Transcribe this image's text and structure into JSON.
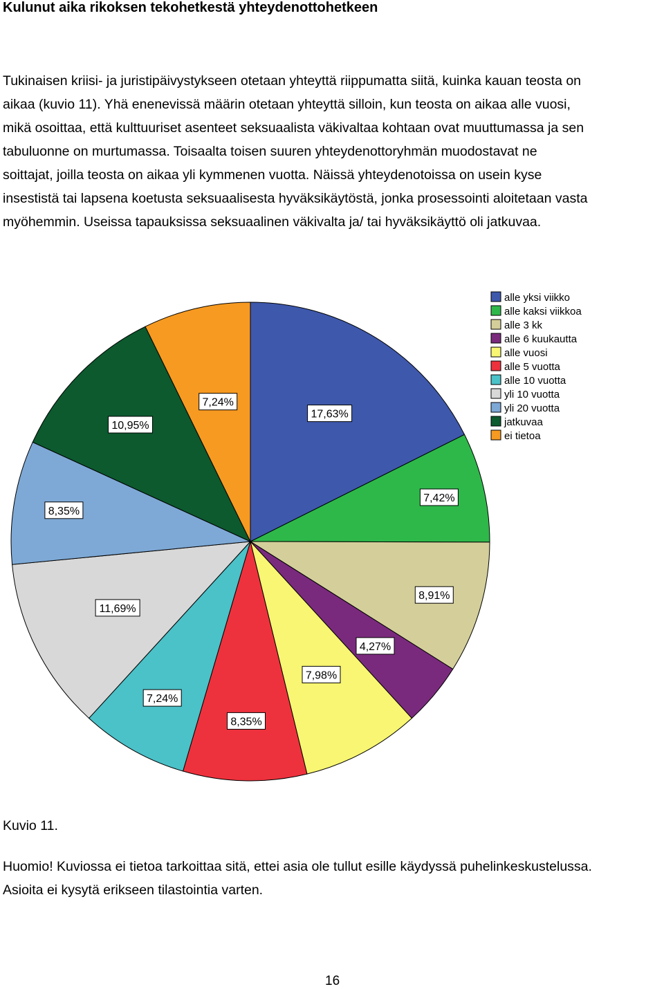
{
  "heading": "Kulunut aika rikoksen tekohetkestä yhteydenottohetkeen",
  "paragraph": [
    "Tukinaisen kriisi- ja juristipäivystykseen otetaan yhteyttä riippumatta siitä, kuinka kauan teosta on",
    "aikaa (kuvio 11). Yhä enenevissä määrin otetaan yhteyttä silloin, kun teosta on aikaa alle vuosi,",
    "mikä osoittaa, että kulttuuriset asenteet seksuaalista väkivaltaa kohtaan ovat muuttumassa ja sen",
    "tabuluonne on murtumassa.  Toisaalta toisen suuren yhteydenottoryhmän muodostavat ne",
    "soittajat, joilla teosta on aikaa yli kymmenen vuotta. Näissä yhteydenotoissa on usein kyse",
    "insestistä tai lapsena koetusta seksuaalisesta hyväksikäytöstä, jonka prosessointi aloitetaan vasta",
    "myöhemmin.  Useissa tapauksissa seksuaalinen väkivalta ja/ tai hyväksikäyttö oli jatkuvaa."
  ],
  "chart_data": {
    "type": "pie",
    "title": "",
    "legend_position": "top-right",
    "slices": [
      {
        "label": "alle yksi viikko",
        "value": 17.63,
        "display": "17,63%",
        "color": "#3E58AC"
      },
      {
        "label": "alle kaksi viikkoa",
        "value": 7.42,
        "display": "7,42%",
        "color": "#2EB84A"
      },
      {
        "label": "alle 3 kk",
        "value": 8.91,
        "display": "8,91%",
        "color": "#D4CF9A"
      },
      {
        "label": "alle 6 kuukautta",
        "value": 4.27,
        "display": "4,27%",
        "color": "#7A2A7D"
      },
      {
        "label": "alle vuosi",
        "value": 7.98,
        "display": "7,98%",
        "color": "#F8F672"
      },
      {
        "label": "alle 5 vuotta",
        "value": 8.35,
        "display": "8,35%",
        "color": "#EE323D"
      },
      {
        "label": "alle 10 vuotta",
        "value": 7.24,
        "display": "7,24%",
        "color": "#4BC1C8"
      },
      {
        "label": "yli 10 vuotta",
        "value": 11.69,
        "display": "11,69%",
        "color": "#D8D8D8"
      },
      {
        "label": "yli 20 vuotta",
        "value": 8.35,
        "display": "8,35%",
        "color": "#7EA9D6"
      },
      {
        "label": "jatkuvaa",
        "value": 10.95,
        "display": "10,95%",
        "color": "#0C5A2E"
      },
      {
        "label": "ei tietoa",
        "value": 7.24,
        "display": "7,24%",
        "color": "#F79A21"
      }
    ]
  },
  "caption": "Kuvio 11.",
  "note": [
    "Huomio! Kuviossa ei tietoa tarkoittaa sitä, ettei asia ole tullut esille käydyssä puhelinkeskustelussa.",
    "Asioita ei kysytä erikseen tilastointia varten."
  ],
  "page_number": "16"
}
